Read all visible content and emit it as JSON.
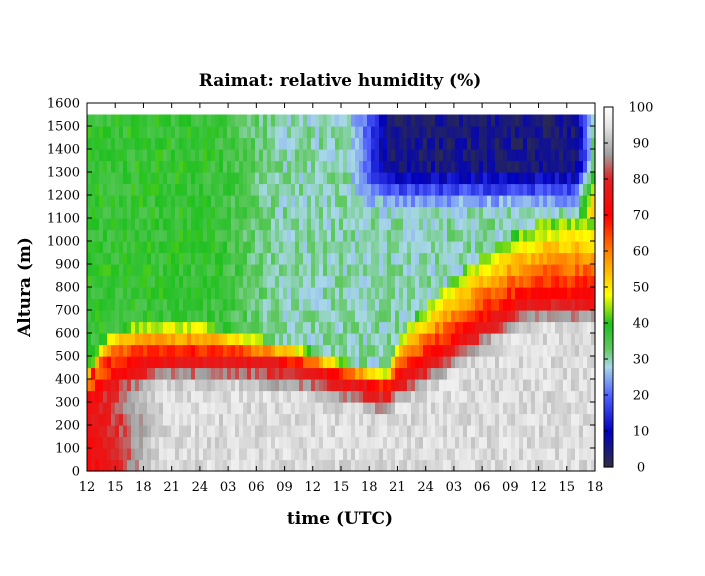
{
  "chart_data": {
    "type": "heatmap",
    "title": "Raimat: relative humidity (%)",
    "xlabel": "time (UTC)",
    "ylabel": "Altura (m)",
    "x_ticks": [
      "12",
      "15",
      "18",
      "21",
      "24",
      "03",
      "06",
      "09",
      "12",
      "15",
      "18",
      "21",
      "24",
      "03",
      "06",
      "09",
      "12",
      "15",
      "18"
    ],
    "y_ticks": [
      0,
      100,
      200,
      300,
      400,
      500,
      600,
      700,
      800,
      900,
      1000,
      1100,
      1200,
      1300,
      1400,
      1500,
      1600
    ],
    "ylim": [
      0,
      1600
    ],
    "data_top_altitude": 1550,
    "colorbar": {
      "ticks": [
        0,
        10,
        20,
        30,
        40,
        50,
        60,
        70,
        80,
        90,
        100
      ],
      "range": [
        0,
        100
      ],
      "stops": [
        {
          "v": 0,
          "color": "#303040"
        },
        {
          "v": 10,
          "color": "#0000c0"
        },
        {
          "v": 20,
          "color": "#5060ff"
        },
        {
          "v": 28,
          "color": "#a8d8e8"
        },
        {
          "v": 33,
          "color": "#60c860"
        },
        {
          "v": 40,
          "color": "#20c020"
        },
        {
          "v": 48,
          "color": "#ffff00"
        },
        {
          "v": 60,
          "color": "#ff8000"
        },
        {
          "v": 70,
          "color": "#ff0000"
        },
        {
          "v": 80,
          "color": "#e02020"
        },
        {
          "v": 87,
          "color": "#a0a0a0"
        },
        {
          "v": 95,
          "color": "#e6e6e6"
        },
        {
          "v": 100,
          "color": "#ffffff"
        }
      ]
    },
    "profile": {
      "time_hours": [
        0,
        2,
        3,
        5,
        8,
        11,
        13,
        14,
        16,
        18,
        21,
        24,
        26,
        29,
        30,
        32,
        33,
        36,
        39,
        42,
        45,
        48,
        50,
        52,
        53,
        54
      ],
      "moist_layer_top_m": [
        390,
        470,
        480,
        490,
        500,
        500,
        500,
        500,
        500,
        490,
        470,
        450,
        420,
        390,
        370,
        360,
        420,
        480,
        560,
        650,
        720,
        760,
        760,
        760,
        760,
        760
      ],
      "inversion_top_m": [
        430,
        580,
        610,
        640,
        650,
        650,
        640,
        620,
        600,
        580,
        560,
        520,
        490,
        460,
        450,
        440,
        580,
        720,
        840,
        940,
        1020,
        1080,
        1100,
        1100,
        1100,
        1100
      ]
    }
  }
}
